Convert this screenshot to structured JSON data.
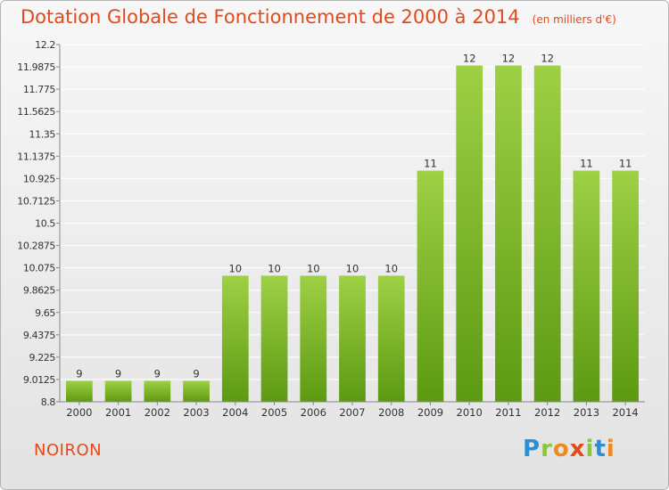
{
  "title": "Dotation Globale de Fonctionnement de 2000 à 2014",
  "title_unit": "(en milliers d'€)",
  "commune": "NOIRON",
  "logo": {
    "text": "Proxiti",
    "letter_colors": [
      "#2b8fd6",
      "#8cc63f",
      "#f08a1c",
      "#e4491c",
      "#8cc63f",
      "#2b8fd6",
      "#f08a1c"
    ]
  },
  "colors": {
    "title": "#e4491c",
    "bar_top": "#9ed045",
    "bar_bottom": "#5c9a12",
    "grid": "#ffffff",
    "axis": "#888888"
  },
  "chart_data": {
    "type": "bar",
    "categories": [
      "2000",
      "2001",
      "2002",
      "2003",
      "2004",
      "2005",
      "2006",
      "2007",
      "2008",
      "2009",
      "2010",
      "2011",
      "2012",
      "2013",
      "2014"
    ],
    "values": [
      9,
      9,
      9,
      9,
      10,
      10,
      10,
      10,
      10,
      11,
      12,
      12,
      12,
      11,
      11
    ],
    "value_labels": [
      "9",
      "9",
      "9",
      "9",
      "10",
      "10",
      "10",
      "10",
      "10",
      "11",
      "12",
      "12",
      "12",
      "11",
      "11"
    ],
    "yticks": [
      12.2,
      11.9875,
      11.775,
      11.5625,
      11.35,
      11.1375,
      10.925,
      10.7125,
      10.5,
      10.2875,
      10.075,
      9.8625,
      9.65,
      9.4375,
      9.225,
      9.0125,
      8.8
    ],
    "ytick_labels": [
      "12.2",
      "11.9875",
      "11.775",
      "11.5625",
      "11.35",
      "11.1375",
      "10.925",
      "10.7125",
      "10.5",
      "10.2875",
      "10.075",
      "9.8625",
      "9.65",
      "9.4375",
      "9.225",
      "9.0125",
      "8.8"
    ],
    "ylim": [
      8.8,
      12.2
    ],
    "grid": true,
    "legend": "none",
    "xlabel": "",
    "ylabel": ""
  }
}
